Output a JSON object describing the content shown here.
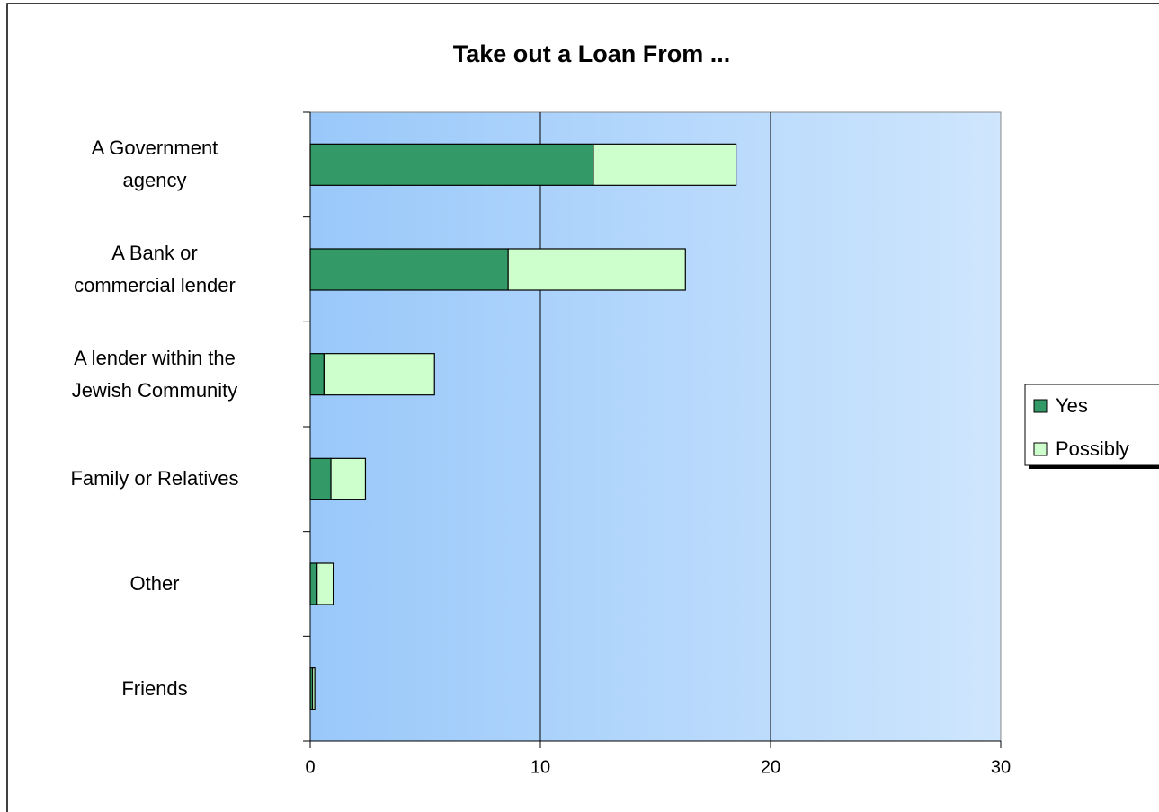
{
  "chart_data": {
    "type": "stacked-bar-horizontal",
    "title": "Take out a Loan From ...",
    "categories": [
      "A Government\nagency",
      "A Bank or\ncommercial lender",
      "A lender within the\nJewish Community",
      "Family or Relatives",
      "Other",
      "Friends"
    ],
    "series": [
      {
        "name": "Yes",
        "color": "#339966",
        "values": [
          12.3,
          8.6,
          0.6,
          0.9,
          0.3,
          0.1
        ]
      },
      {
        "name": "Possibly",
        "color": "#ccffcc",
        "values": [
          6.2,
          7.7,
          4.8,
          1.5,
          0.7,
          0.1
        ]
      }
    ],
    "xlim": [
      0,
      30
    ],
    "xticks": [
      0,
      10,
      20,
      30
    ],
    "grid": true,
    "legend": "right"
  }
}
